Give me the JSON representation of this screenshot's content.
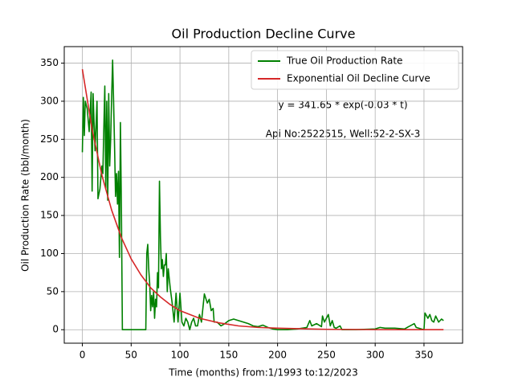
{
  "chart_data": {
    "type": "line",
    "title": "Oil Production Decline Curve",
    "xlabel": "Time (months) from:1/1993 to:12/2023",
    "ylabel": "Oil Production Rate (bbl/month)",
    "annotations": [
      "y = 341.65 * exp(-0.03 * t)",
      "Api No:2522515, Well:52-2-SX-3"
    ],
    "xlim": [
      -18.55,
      389.55
    ],
    "ylim": [
      -17.7,
      371.7
    ],
    "xticks": [
      0,
      50,
      100,
      150,
      200,
      250,
      300,
      350
    ],
    "yticks": [
      0,
      50,
      100,
      150,
      200,
      250,
      300,
      350
    ],
    "grid": true,
    "legend": "upper right",
    "series": [
      {
        "name": "True Oil Production Rate",
        "color": "#008000",
        "x": [
          0,
          1,
          2,
          3,
          5,
          7,
          9,
          10,
          11,
          13,
          15,
          16,
          18,
          20,
          21,
          22,
          23,
          24,
          25,
          26,
          27,
          28,
          29,
          30,
          31,
          32,
          33,
          34,
          35,
          36,
          37,
          38,
          39,
          40,
          41,
          65,
          66,
          67,
          68,
          69,
          70,
          71,
          72,
          73,
          74,
          75,
          76,
          77,
          78,
          79,
          80,
          81,
          82,
          83,
          84,
          85,
          86,
          87,
          88,
          90,
          92,
          94,
          96,
          98,
          100,
          102,
          104,
          106,
          108,
          110,
          112,
          114,
          116,
          118,
          120,
          122,
          125,
          128,
          130,
          132,
          134,
          135,
          138,
          142,
          146,
          150,
          155,
          160,
          165,
          170,
          175,
          180,
          185,
          190,
          195,
          200,
          210,
          220,
          230,
          233,
          235,
          240,
          245,
          246,
          248,
          250,
          252,
          254,
          256,
          258,
          260,
          264,
          266,
          280,
          300,
          305,
          310,
          320,
          330,
          340,
          342,
          350,
          351,
          354,
          356,
          358,
          360,
          362,
          365,
          368,
          370
        ],
        "values": [
          233,
          305,
          255,
          300,
          290,
          260,
          312,
          182,
          310,
          235,
          300,
          172,
          185,
          215,
          205,
          265,
          320,
          185,
          300,
          170,
          310,
          215,
          250,
          305,
          354,
          300,
          240,
          175,
          205,
          165,
          208,
          95,
          272,
          160,
          0,
          0,
          100,
          112,
          80,
          60,
          25,
          45,
          30,
          50,
          15,
          40,
          30,
          75,
          55,
          195,
          120,
          80,
          92,
          70,
          85,
          85,
          100,
          50,
          80,
          55,
          35,
          10,
          48,
          10,
          48,
          10,
          5,
          15,
          10,
          0,
          10,
          15,
          5,
          5,
          20,
          10,
          47,
          35,
          40,
          25,
          28,
          10,
          10,
          5,
          8,
          12,
          14,
          12,
          10,
          8,
          5,
          4,
          6,
          3,
          1,
          0,
          0,
          1,
          3,
          12,
          5,
          8,
          4,
          18,
          10,
          15,
          20,
          5,
          12,
          3,
          2,
          5,
          0,
          0,
          1,
          3,
          2,
          2,
          1,
          8,
          3,
          0,
          22,
          15,
          20,
          12,
          10,
          18,
          10,
          14,
          12
        ]
      },
      {
        "name": "Exponential Oil Decline Curve",
        "color": "#d62728",
        "x": [
          0,
          10,
          20,
          30,
          40,
          50,
          60,
          70,
          80,
          90,
          100,
          120,
          140,
          160,
          180,
          200,
          250,
          300,
          370
        ],
        "values": [
          342,
          263,
          203,
          157,
          121,
          93,
          72,
          55,
          43,
          33,
          25,
          15,
          9,
          5,
          3,
          2,
          0.5,
          0.1,
          0
        ]
      }
    ]
  }
}
